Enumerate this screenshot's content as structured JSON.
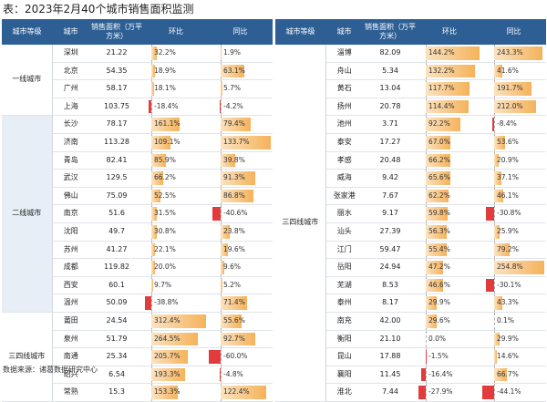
{
  "title": "表：2023年2月40个城市销售面积监测",
  "source": "数据来源：诸葛数据研究中心",
  "headers": {
    "tier": "城市等级",
    "city": "城市",
    "area": "销售面积（万平方米）",
    "mom": "环比",
    "yoy": "同比"
  },
  "chart_data": {
    "type": "table",
    "left": {
      "groups": [
        {
          "tier": "一线城市",
          "rows": [
            {
              "city": "深圳",
              "area": "21.22",
              "mom": 32.2,
              "yoy": 1.9
            },
            {
              "city": "北京",
              "area": "54.35",
              "mom": 18.9,
              "yoy": 63.1
            },
            {
              "city": "广州",
              "area": "58.17",
              "mom": 18.1,
              "yoy": 5.7
            },
            {
              "city": "上海",
              "area": "103.75",
              "mom": -18.4,
              "yoy": -4.2
            }
          ]
        },
        {
          "tier": "二线城市",
          "rows": [
            {
              "city": "长沙",
              "area": "78.17",
              "mom": 161.1,
              "yoy": 79.4
            },
            {
              "city": "济南",
              "area": "113.28",
              "mom": 109.1,
              "yoy": 133.7
            },
            {
              "city": "青岛",
              "area": "82.41",
              "mom": 85.9,
              "yoy": 39.8
            },
            {
              "city": "武汉",
              "area": "129.5",
              "mom": 66.2,
              "yoy": 91.3
            },
            {
              "city": "佛山",
              "area": "75.09",
              "mom": 52.5,
              "yoy": 86.8
            },
            {
              "city": "南京",
              "area": "51.6",
              "mom": 31.5,
              "yoy": -40.6
            },
            {
              "city": "沈阳",
              "area": "49.7",
              "mom": 30.8,
              "yoy": 23.8
            },
            {
              "city": "苏州",
              "area": "41.27",
              "mom": 22.1,
              "yoy": 19.6
            },
            {
              "city": "成都",
              "area": "119.82",
              "mom": 20.0,
              "yoy": 9.6
            },
            {
              "city": "西安",
              "area": "60.1",
              "mom": 9.7,
              "yoy": 5.2
            },
            {
              "city": "温州",
              "area": "50.09",
              "mom": -38.8,
              "yoy": 71.4
            }
          ]
        },
        {
          "tier": "三四线城市",
          "rows": [
            {
              "city": "莆田",
              "area": "24.54",
              "mom": 312.4,
              "yoy": 55.6
            },
            {
              "city": "泉州",
              "area": "51.79",
              "mom": 264.5,
              "yoy": 92.7
            },
            {
              "city": "南通",
              "area": "25.34",
              "mom": 205.7,
              "yoy": -60.0
            },
            {
              "city": "绍兴",
              "area": "6.54",
              "mom": 193.3,
              "yoy": -4.8
            },
            {
              "city": "常熟",
              "area": "15.3",
              "mom": 153.3,
              "yoy": 122.4
            }
          ]
        }
      ]
    },
    "right": {
      "groups": [
        {
          "tier": "三四线城市",
          "rows": [
            {
              "city": "淄博",
              "area": "82.09",
              "mom": 144.2,
              "yoy": 243.3
            },
            {
              "city": "舟山",
              "area": "5.34",
              "mom": 132.2,
              "yoy": 41.6
            },
            {
              "city": "黄石",
              "area": "13.04",
              "mom": 117.7,
              "yoy": 191.7
            },
            {
              "city": "扬州",
              "area": "20.78",
              "mom": 114.4,
              "yoy": 212.0
            },
            {
              "city": "池州",
              "area": "3.71",
              "mom": 92.2,
              "yoy": -8.4
            },
            {
              "city": "泰安",
              "area": "17.27",
              "mom": 67.0,
              "yoy": 53.6
            },
            {
              "city": "孝感",
              "area": "20.48",
              "mom": 66.2,
              "yoy": 20.9
            },
            {
              "city": "威海",
              "area": "9.42",
              "mom": 65.6,
              "yoy": 37.1
            },
            {
              "city": "张家港",
              "area": "7.67",
              "mom": 62.2,
              "yoy": 46.1
            },
            {
              "city": "丽水",
              "area": "9.17",
              "mom": 59.8,
              "yoy": -30.8
            },
            {
              "city": "汕头",
              "area": "27.39",
              "mom": 56.3,
              "yoy": 25.9
            },
            {
              "city": "江门",
              "area": "59.47",
              "mom": 55.4,
              "yoy": 79.2
            },
            {
              "city": "岳阳",
              "area": "24.94",
              "mom": 47.2,
              "yoy": 254.8
            },
            {
              "city": "芜湖",
              "area": "8.53",
              "mom": 46.6,
              "yoy": -30.1
            },
            {
              "city": "泰州",
              "area": "8.17",
              "mom": 29.9,
              "yoy": 43.3
            },
            {
              "city": "南充",
              "area": "42.00",
              "mom": 29.6,
              "yoy": 0.1
            },
            {
              "city": "衡阳",
              "area": "21.10",
              "mom": 0.0,
              "yoy": 29.9
            },
            {
              "city": "昆山",
              "area": "17.88",
              "mom": -1.5,
              "yoy": 14.6
            },
            {
              "city": "襄阳",
              "area": "11.45",
              "mom": -16.4,
              "yoy": 66.7
            },
            {
              "city": "淮北",
              "area": "7.44",
              "mom": -27.9,
              "yoy": -44.1
            }
          ]
        }
      ]
    }
  }
}
